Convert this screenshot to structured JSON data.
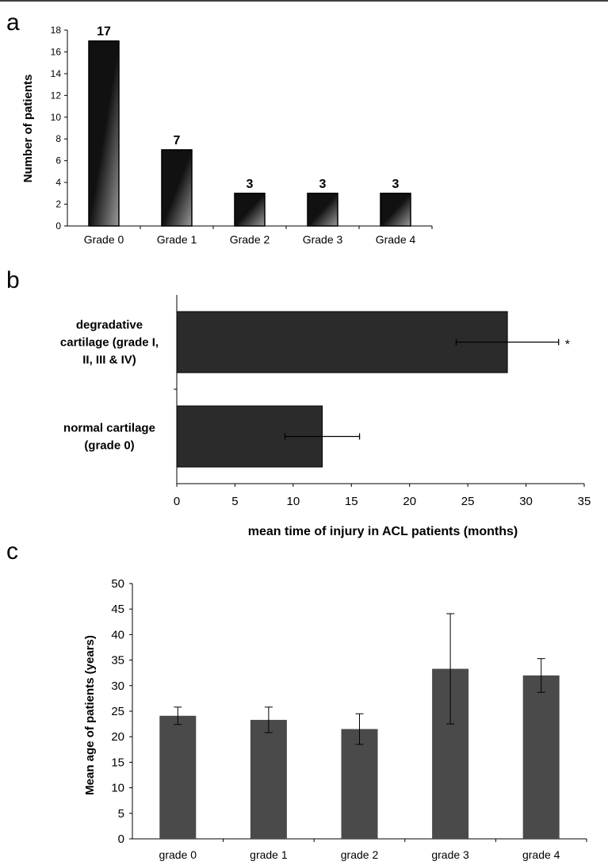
{
  "figure": {
    "panels": [
      {
        "letter": "a",
        "chart_data": {
          "type": "bar",
          "orientation": "vertical",
          "categories": [
            "Grade 0",
            "Grade 1",
            "Grade 2",
            "Grade 3",
            "Grade 4"
          ],
          "values": [
            17,
            7,
            3,
            3,
            3
          ],
          "data_labels": [
            "17",
            "7",
            "3",
            "3",
            "3"
          ],
          "xlabel": "",
          "ylabel": "Number of patients",
          "ylim": [
            0,
            18
          ],
          "yticks": [
            0,
            2,
            4,
            6,
            8,
            10,
            12,
            14,
            16,
            18
          ],
          "grid": false,
          "bar_fill": "gradient",
          "bar_colors": [
            "#111111",
            "#9a9a9a"
          ]
        }
      },
      {
        "letter": "b",
        "chart_data": {
          "type": "bar",
          "orientation": "horizontal",
          "categories": [
            [
              "degradative",
              "cartilage (grade I,",
              "II, III & IV)"
            ],
            [
              "normal cartilage",
              "(grade 0)"
            ]
          ],
          "values": [
            28.4,
            12.5
          ],
          "errors": [
            4.4,
            3.2
          ],
          "annotations": [
            "*",
            ""
          ],
          "xlabel": "mean time of injury in ACL patients (months)",
          "ylabel": "",
          "xlim": [
            0,
            35
          ],
          "xticks": [
            0,
            5,
            10,
            15,
            20,
            25,
            30,
            35
          ],
          "grid": false,
          "bar_color": "#2b2b2b"
        }
      },
      {
        "letter": "c",
        "chart_data": {
          "type": "bar",
          "orientation": "vertical",
          "categories": [
            "grade 0",
            "grade 1",
            "grade 2",
            "grade 3",
            "grade 4"
          ],
          "values": [
            24.1,
            23.3,
            21.5,
            33.3,
            32.0
          ],
          "errors": [
            1.7,
            2.5,
            3.0,
            10.8,
            3.3
          ],
          "xlabel": "",
          "ylabel": "Mean age of patients (years)",
          "ylim": [
            0,
            50
          ],
          "yticks": [
            0,
            5,
            10,
            15,
            20,
            25,
            30,
            35,
            40,
            45,
            50
          ],
          "grid": false,
          "bar_color": "#4a4a4a"
        }
      }
    ]
  }
}
